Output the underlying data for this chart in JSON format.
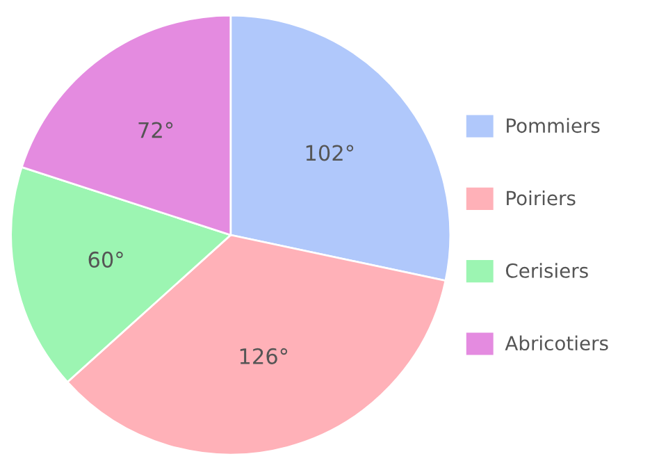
{
  "chart_data": {
    "type": "pie",
    "categories": [
      "Pommiers",
      "Poiriers",
      "Cerisiers",
      "Abricotiers"
    ],
    "values": [
      102,
      126,
      60,
      72
    ],
    "value_labels": [
      "102°",
      "126°",
      "60°",
      "72°"
    ],
    "colors": [
      "#b0c8fb",
      "#ffb1b8",
      "#9cf5b2",
      "#e48be0"
    ],
    "legend": "right"
  }
}
